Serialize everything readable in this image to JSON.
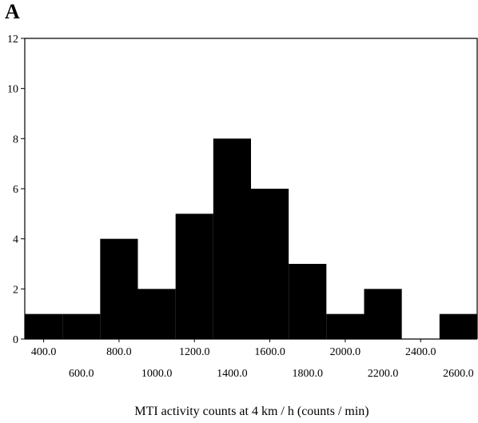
{
  "panel_label": "A",
  "chart_data": {
    "type": "bar",
    "title": "",
    "xlabel": "MTI activity counts at 4 km / h (counts / min)",
    "ylabel": "",
    "ylim": [
      0,
      12
    ],
    "yticks": [
      0,
      2,
      4,
      6,
      8,
      10,
      12
    ],
    "x_tick_labels_row1": [
      "400.0",
      "800.0",
      "1200.0",
      "1600.0",
      "2000.0",
      "2400.0"
    ],
    "x_tick_labels_row2": [
      "600.0",
      "1000.0",
      "1400.0",
      "1800.0",
      "2200.0",
      "2600.0"
    ],
    "bin_width": 200,
    "bins": [
      {
        "start": 300,
        "end": 500,
        "value": 1
      },
      {
        "start": 500,
        "end": 700,
        "value": 1
      },
      {
        "start": 700,
        "end": 900,
        "value": 4
      },
      {
        "start": 900,
        "end": 1100,
        "value": 2
      },
      {
        "start": 1100,
        "end": 1300,
        "value": 5
      },
      {
        "start": 1300,
        "end": 1500,
        "value": 8
      },
      {
        "start": 1500,
        "end": 1700,
        "value": 6
      },
      {
        "start": 1700,
        "end": 1900,
        "value": 3
      },
      {
        "start": 1900,
        "end": 2100,
        "value": 1
      },
      {
        "start": 2100,
        "end": 2300,
        "value": 2
      },
      {
        "start": 2300,
        "end": 2500,
        "value": 0
      },
      {
        "start": 2500,
        "end": 2700,
        "value": 1
      }
    ],
    "x_range": [
      300,
      2700
    ],
    "bar_color": "#000000"
  }
}
